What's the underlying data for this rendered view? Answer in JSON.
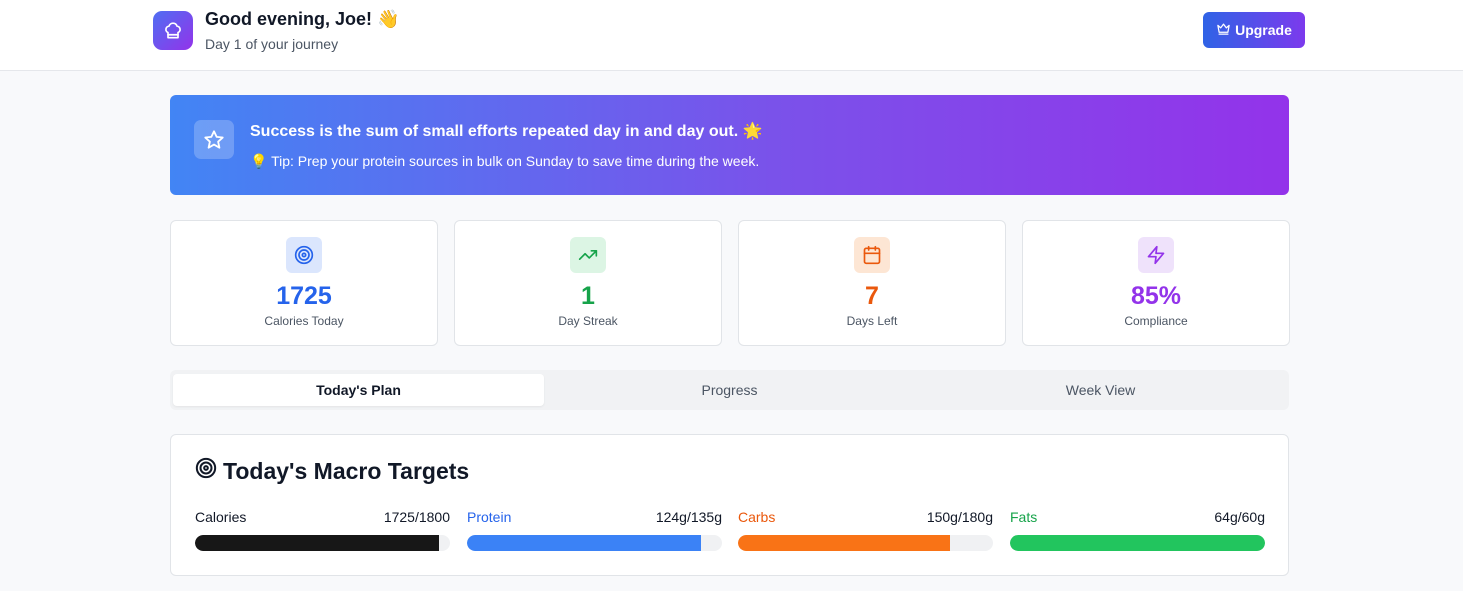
{
  "header": {
    "greeting": "Good evening, Joe! 👋",
    "subtitle": "Day 1 of your journey",
    "upgrade_label": "Upgrade"
  },
  "banner": {
    "title": "Success is the sum of small efforts repeated day in and day out. 🌟",
    "tip": "💡 Tip: Prep your protein sources in bulk on Sunday to save time during the week."
  },
  "stats": [
    {
      "value": "1725",
      "label": "Calories Today",
      "icon": "target-icon",
      "color": "#2563eb",
      "bg": "#dbe6fd"
    },
    {
      "value": "1",
      "label": "Day Streak",
      "icon": "trending-up-icon",
      "color": "#16a34a",
      "bg": "#dcf5e4"
    },
    {
      "value": "7",
      "label": "Days Left",
      "icon": "calendar-icon",
      "color": "#ea580c",
      "bg": "#fde6d4"
    },
    {
      "value": "85%",
      "label": "Compliance",
      "icon": "lightning-icon",
      "color": "#9333ea",
      "bg": "#efe2fb"
    }
  ],
  "tabs": [
    {
      "label": "Today's Plan",
      "active": true
    },
    {
      "label": "Progress",
      "active": false
    },
    {
      "label": "Week View",
      "active": false
    }
  ],
  "macros": {
    "title": "Today's Macro Targets",
    "items": [
      {
        "name": "Calories",
        "amount": "1725/1800",
        "fraction": 0.958,
        "color": "#171717",
        "name_color": "#111827"
      },
      {
        "name": "Protein",
        "amount": "124g/135g",
        "fraction": 0.919,
        "color": "#3b82f6",
        "name_color": "#2563eb"
      },
      {
        "name": "Carbs",
        "amount": "150g/180g",
        "fraction": 0.833,
        "color": "#f97316",
        "name_color": "#ea580c"
      },
      {
        "name": "Fats",
        "amount": "64g/60g",
        "fraction": 1.0,
        "color": "#22c55e",
        "name_color": "#16a34a"
      }
    ]
  }
}
